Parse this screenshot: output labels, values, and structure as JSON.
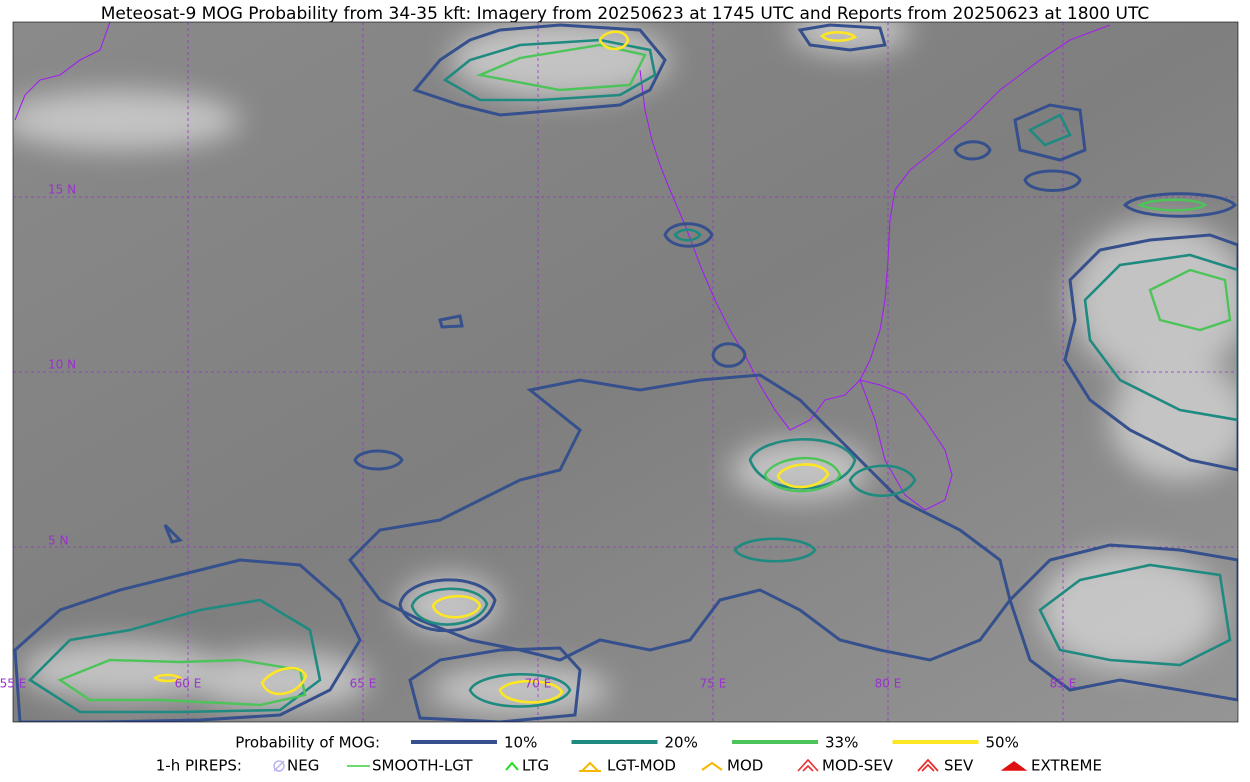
{
  "title": "Meteosat-9 MOG Probability from 34-35 kft: Imagery from 20250623 at 1745 UTC and Reports from 20250623 at 1800 UTC",
  "map": {
    "lat_labels": [
      "15 N",
      "10 N",
      "5 N"
    ],
    "lon_labels": [
      "55 E",
      "60 E",
      "65 E",
      "70 E",
      "75 E",
      "80 E",
      "85 E"
    ]
  },
  "legend": {
    "probability_title": "Probability of MOG:",
    "probability_items": [
      {
        "label": "10%",
        "color": "#35508c"
      },
      {
        "label": "20%",
        "color": "#1f8a80"
      },
      {
        "label": "33%",
        "color": "#4cc45a"
      },
      {
        "label": "50%",
        "color": "#fde725"
      }
    ],
    "pireps_title": "1-h PIREPS:",
    "pireps_items": [
      {
        "label": "NEG",
        "color": "#b9b4f0"
      },
      {
        "label": "SMOOTH-LGT",
        "color": "#3ad13a"
      },
      {
        "label": "LTG",
        "color": "#22dd22"
      },
      {
        "label": "LGT-MOD",
        "color": "#f5b800"
      },
      {
        "label": "MOD",
        "color": "#f5b800"
      },
      {
        "label": "MOD-SEV",
        "color": "#e83030"
      },
      {
        "label": "SEV",
        "color": "#e83030"
      },
      {
        "label": "EXTREME",
        "color": "#e01010"
      }
    ]
  }
}
